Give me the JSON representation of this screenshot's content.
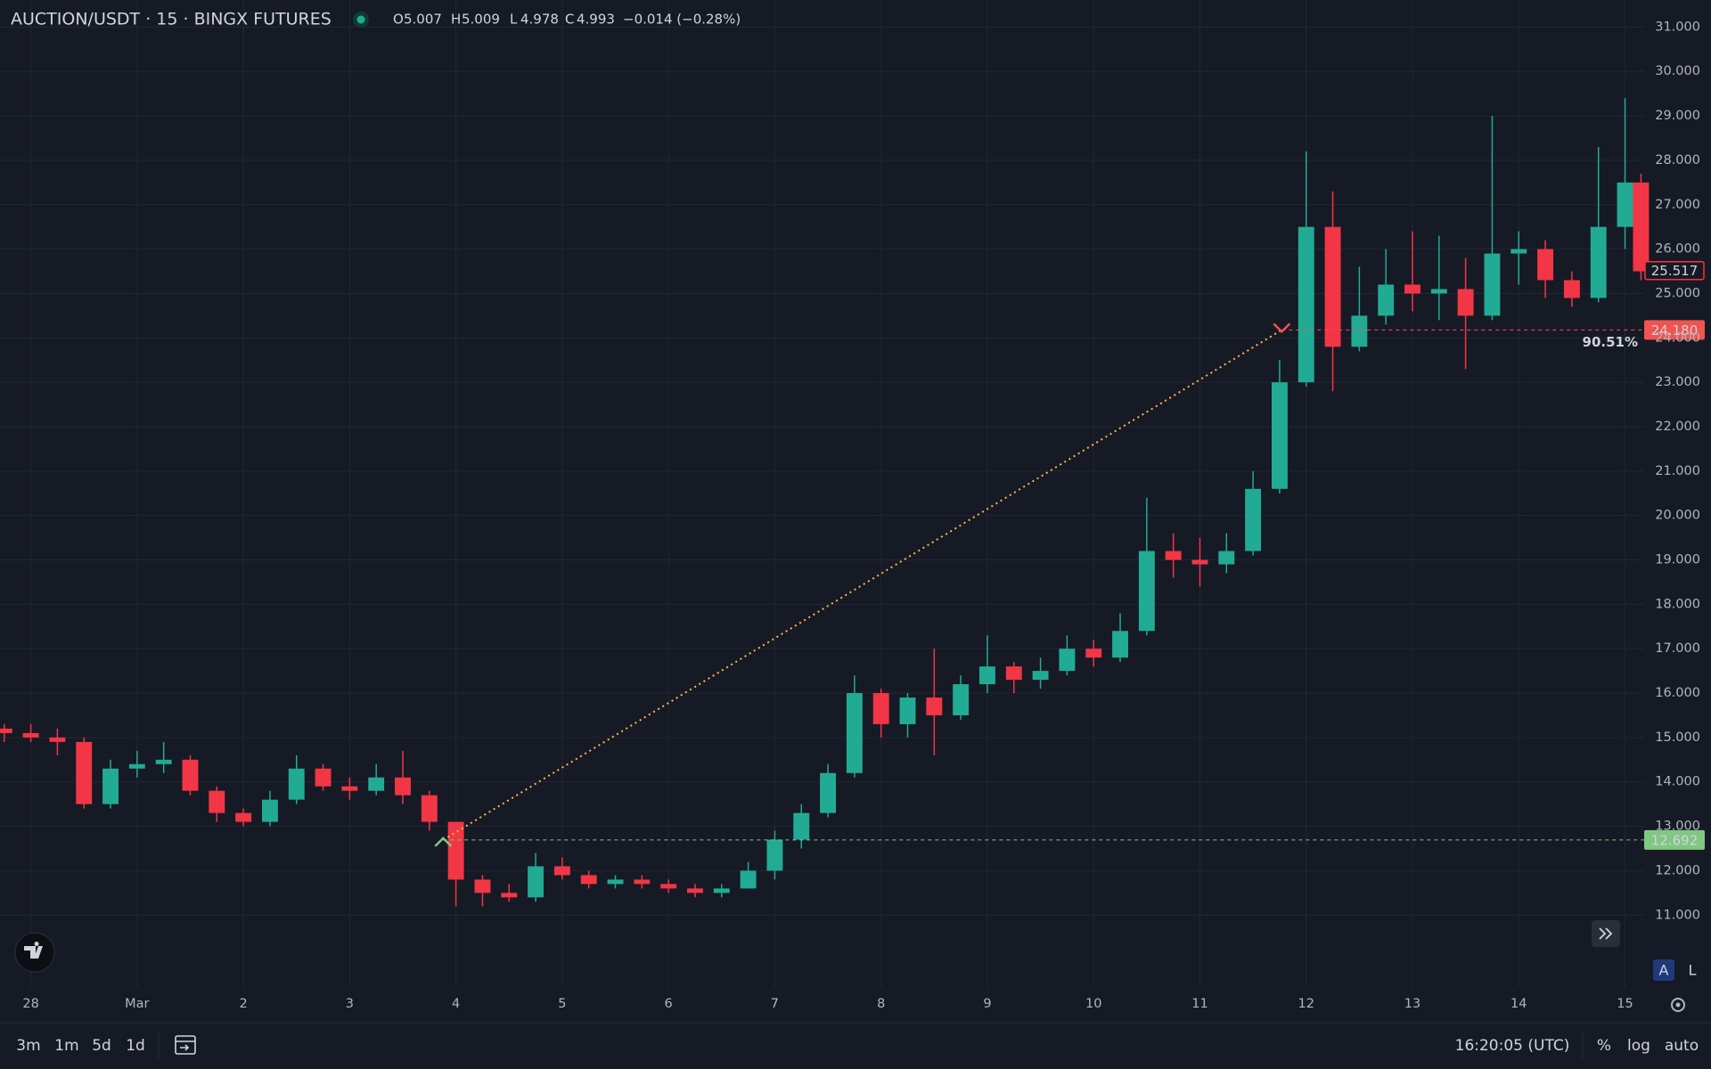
{
  "header": {
    "symbol": "AUCTION/USDT · 15 · BINGX FUTURES",
    "ohlc": [
      {
        "key": "O",
        "value": "5.007"
      },
      {
        "key": "H",
        "value": "5.009"
      },
      {
        "key": "L",
        "value": "4.978"
      },
      {
        "key": "C",
        "value": "4.993"
      }
    ],
    "change": "−0.014 (−0.28%)"
  },
  "chart_data": {
    "type": "candlestick",
    "x": [
      -0.25,
      0,
      0.25,
      0.5,
      0.75,
      1,
      1.25,
      1.5,
      1.75,
      2,
      2.25,
      2.5,
      2.75,
      3,
      3.25,
      3.5,
      3.75,
      4,
      4.25,
      4.5,
      4.75,
      5,
      5.25,
      5.5,
      5.75,
      6,
      6.25,
      6.5,
      6.75,
      7,
      7.25,
      7.5,
      7.75,
      8,
      8.25,
      8.5,
      8.75,
      9,
      9.25,
      9.5,
      9.75,
      10,
      10.25,
      10.5,
      10.75,
      11,
      11.25,
      11.5,
      11.75,
      12,
      12.25,
      12.5,
      12.75,
      13,
      13.25,
      13.5,
      13.75,
      14,
      14.25,
      14.5,
      14.75,
      15,
      15.15
    ],
    "open": [
      15.2,
      15.1,
      15.0,
      14.9,
      13.5,
      14.3,
      14.4,
      14.5,
      13.8,
      13.3,
      13.1,
      13.6,
      14.3,
      13.9,
      13.8,
      14.1,
      13.7,
      13.1,
      11.8,
      11.5,
      11.4,
      12.1,
      11.9,
      11.7,
      11.8,
      11.7,
      11.6,
      11.5,
      11.6,
      12.0,
      12.7,
      13.3,
      14.2,
      16.0,
      15.3,
      15.9,
      15.5,
      16.2,
      16.6,
      16.3,
      16.5,
      17.0,
      16.8,
      17.4,
      19.2,
      19.0,
      18.9,
      19.2,
      20.6,
      23.0,
      26.5,
      23.8,
      24.5,
      25.2,
      25.0,
      25.1,
      24.5,
      25.9,
      26.0,
      25.3,
      24.9,
      26.5,
      27.5
    ],
    "high": [
      15.3,
      15.3,
      15.2,
      15.0,
      14.5,
      14.7,
      14.9,
      14.6,
      13.9,
      13.4,
      13.8,
      14.6,
      14.4,
      14.1,
      14.4,
      14.7,
      13.8,
      13.1,
      11.9,
      11.7,
      12.4,
      12.3,
      12.0,
      11.9,
      11.9,
      11.8,
      11.7,
      11.7,
      12.2,
      12.9,
      13.5,
      14.4,
      16.4,
      16.1,
      16.0,
      17.0,
      16.4,
      17.3,
      16.7,
      16.8,
      17.3,
      17.2,
      17.8,
      20.4,
      19.6,
      19.5,
      19.6,
      21.0,
      23.5,
      28.2,
      27.3,
      25.6,
      26.0,
      26.4,
      26.3,
      25.8,
      29.0,
      26.4,
      26.2,
      25.5,
      28.3,
      29.4,
      27.7
    ],
    "low": [
      14.9,
      14.9,
      14.6,
      13.4,
      13.4,
      14.1,
      14.2,
      13.7,
      13.1,
      13.0,
      13.0,
      13.5,
      13.8,
      13.6,
      13.7,
      13.5,
      12.9,
      11.2,
      11.2,
      11.3,
      11.3,
      11.8,
      11.6,
      11.6,
      11.6,
      11.5,
      11.4,
      11.4,
      11.6,
      11.8,
      12.5,
      13.2,
      14.1,
      15.0,
      15.0,
      14.6,
      15.4,
      16.0,
      16.0,
      16.1,
      16.4,
      16.6,
      16.7,
      17.3,
      18.6,
      18.4,
      18.7,
      19.1,
      20.5,
      22.9,
      22.8,
      23.7,
      24.3,
      24.6,
      24.4,
      23.3,
      24.4,
      25.2,
      24.9,
      24.7,
      24.8,
      26.0,
      25.3
    ],
    "close": [
      15.1,
      15.0,
      14.9,
      13.5,
      14.3,
      14.4,
      14.5,
      13.8,
      13.3,
      13.1,
      13.6,
      14.3,
      13.9,
      13.8,
      14.1,
      13.7,
      13.1,
      11.8,
      11.5,
      11.4,
      12.1,
      11.9,
      11.7,
      11.8,
      11.7,
      11.6,
      11.5,
      11.6,
      12.0,
      12.7,
      13.3,
      14.2,
      16.0,
      15.3,
      15.9,
      15.5,
      16.2,
      16.6,
      16.3,
      16.5,
      17.0,
      16.8,
      17.4,
      19.2,
      19.0,
      18.9,
      19.2,
      20.6,
      23.0,
      26.5,
      23.8,
      24.5,
      25.2,
      25.0,
      25.1,
      24.5,
      25.9,
      26.0,
      25.3,
      24.9,
      26.5,
      27.5,
      25.5
    ],
    "up_color": "#22ab94",
    "down_color": "#f23645",
    "xlim": [
      -0.29,
      15.18
    ],
    "xticks": [
      {
        "value": 0,
        "label": "28"
      },
      {
        "value": 1,
        "label": "Mar"
      },
      2,
      3,
      4,
      5,
      6,
      7,
      8,
      9,
      10,
      11,
      12,
      13,
      14,
      15
    ],
    "ylim": [
      9.38,
      31.61
    ],
    "yticks": [
      {
        "value": 11,
        "label": "11.000"
      },
      {
        "value": 12,
        "label": "12.000"
      },
      {
        "value": 13,
        "label": "13.000"
      },
      {
        "value": 14,
        "label": "14.000"
      },
      {
        "value": 15,
        "label": "15.000"
      },
      {
        "value": 16,
        "label": "16.000"
      },
      {
        "value": 17,
        "label": "17.000"
      },
      {
        "value": 18,
        "label": "18.000"
      },
      {
        "value": 19,
        "label": "19.000"
      },
      {
        "value": 20,
        "label": "20.000"
      },
      {
        "value": 21,
        "label": "21.000"
      },
      {
        "value": 22,
        "label": "22.000"
      },
      {
        "value": 23,
        "label": "23.000"
      },
      {
        "value": 24,
        "label": "24.000"
      },
      {
        "value": 25,
        "label": "25.000"
      },
      {
        "value": 26,
        "label": "26.000"
      },
      {
        "value": 27,
        "label": "27.000"
      },
      {
        "value": 28,
        "label": "28.000"
      },
      {
        "value": 29,
        "label": "29.000"
      },
      {
        "value": 30,
        "label": "30.000"
      },
      {
        "value": 31,
        "label": "31.000"
      }
    ],
    "grid": true,
    "last_price": {
      "value": 25.517,
      "label": "25.517"
    },
    "entry": {
      "x": 3.88,
      "price": {
        "value": 12.692,
        "label": "12.692"
      },
      "color": "#81c784"
    },
    "exit": {
      "x": 11.77,
      "price": {
        "value": 24.18,
        "label": "24.180"
      },
      "color": "#f05350"
    },
    "change_label": "90.51%",
    "connector_color": "#ffb74d"
  },
  "toolbar": {
    "ranges": [
      "3m",
      "1m",
      "5d",
      "1d"
    ],
    "time": "16:20:05 (UTC)",
    "options": [
      "%",
      "log",
      "auto"
    ],
    "scale_buttons": [
      "A",
      "L"
    ]
  }
}
